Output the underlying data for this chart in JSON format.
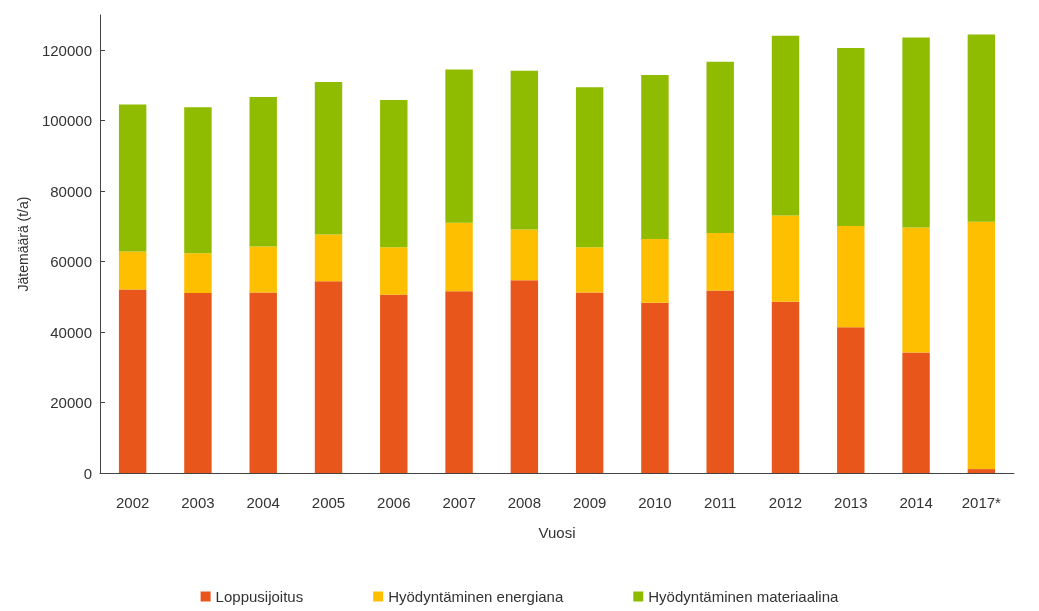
{
  "chart_data": {
    "type": "bar",
    "stacked": true,
    "xlabel": "Vuosi",
    "ylabel": "Jätemäärä (t/a)",
    "categories": [
      "2002",
      "2003",
      "2004",
      "2005",
      "2006",
      "2007",
      "2008",
      "2009",
      "2010",
      "2011",
      "2012",
      "2013",
      "2014",
      "2017*"
    ],
    "series": [
      {
        "name": "Loppusijoitus",
        "color": "#e8561c",
        "values": [
          52100,
          51100,
          51200,
          54400,
          50600,
          51600,
          54700,
          51200,
          48300,
          51800,
          48600,
          41400,
          34200,
          1100
        ]
      },
      {
        "name": "Hyödyntäminen energiana",
        "color": "#fdbf00",
        "values": [
          10800,
          11300,
          13100,
          13300,
          13500,
          19400,
          14400,
          12900,
          18100,
          16300,
          24500,
          28700,
          35500,
          70200
        ]
      },
      {
        "name": "Hyödyntäminen materiaalina",
        "color": "#8fbc00",
        "values": [
          41700,
          41400,
          42400,
          43300,
          41800,
          43500,
          45100,
          45400,
          46600,
          48600,
          51000,
          50500,
          53900,
          53200
        ]
      }
    ],
    "ylim": [
      0,
      130000
    ],
    "yticks": [
      0,
      20000,
      40000,
      60000,
      80000,
      100000,
      120000
    ],
    "grid": false,
    "legend": "bottom"
  }
}
